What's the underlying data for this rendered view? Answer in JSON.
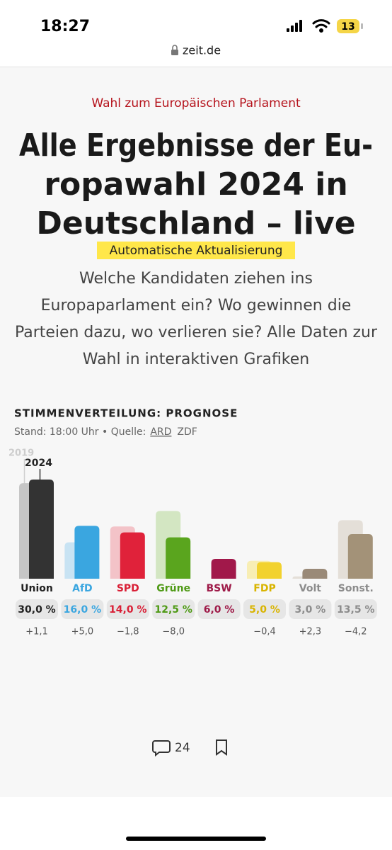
{
  "status_bar": {
    "time": "18:27",
    "battery": "13"
  },
  "browser": {
    "url": "zeit.de"
  },
  "article": {
    "kicker": "Wahl zum Europäischen Parlament",
    "title_lines": [
      "Alle Ergebnisse der Eu-",
      "ropawahl 2024 in",
      "Deutschland – live"
    ],
    "badge": "Automatische Aktualisierung",
    "summary_lines": [
      "Welche Kandidaten ziehen ins",
      "Europaparlament ein? Wo gewinnen die",
      "Parteien dazu, wo verlieren sie? Alle Daten zur",
      "Wahl in interaktiven Grafiken"
    ]
  },
  "chart_data": {
    "type": "bar",
    "title": "STIMMENVERTEILUNG: PROGNOSE",
    "subtitle": "Stand: 18:00 Uhr • Quelle:",
    "sources": [
      "ARD",
      "ZDF"
    ],
    "categories": [
      "Union",
      "AfD",
      "SPD",
      "Grüne",
      "BSW",
      "FDP",
      "Volt",
      "Sonst."
    ],
    "category_colors": [
      "#222222",
      "#3aa6e0",
      "#d91f36",
      "#4f9a16",
      "#9e1a48",
      "#d9b400",
      "#8c8c8c",
      "#8c8c8c"
    ],
    "series": [
      {
        "name": "2019",
        "values": [
          28.9,
          11.0,
          15.8,
          20.5,
          null,
          5.4,
          0.7,
          17.7
        ],
        "colors": [
          "#c6c6c6",
          "#c8e3f3",
          "#f3c3c8",
          "#d3e6c2",
          "#e0c0cc",
          "#f8eeb4",
          "#e4dfd8",
          "#e4dfd8"
        ]
      },
      {
        "name": "2024",
        "values": [
          30.0,
          16.0,
          14.0,
          12.5,
          6.0,
          5.0,
          3.0,
          13.5
        ],
        "value_labels": [
          "30,0 %",
          "16,0 %",
          "14,0 %",
          "12,5 %",
          "6,0 %",
          "5,0 %",
          "3,0 %",
          "13,5 %"
        ],
        "colors": [
          "#333333",
          "#3aa6e0",
          "#e0223a",
          "#5aa51e",
          "#a1184a",
          "#f2d22e",
          "#9a8a78",
          "#a39278"
        ]
      }
    ],
    "changes": {
      "values": [
        1.1,
        5.0,
        -1.8,
        -8.0,
        null,
        -0.4,
        2.3,
        -4.2
      ],
      "value_labels": [
        "+1,1",
        "+5,0",
        "−1,8",
        "−8,0",
        null,
        "−0,4",
        "+2,3",
        "−4,2"
      ]
    }
  },
  "footer": {
    "comments": "24"
  }
}
